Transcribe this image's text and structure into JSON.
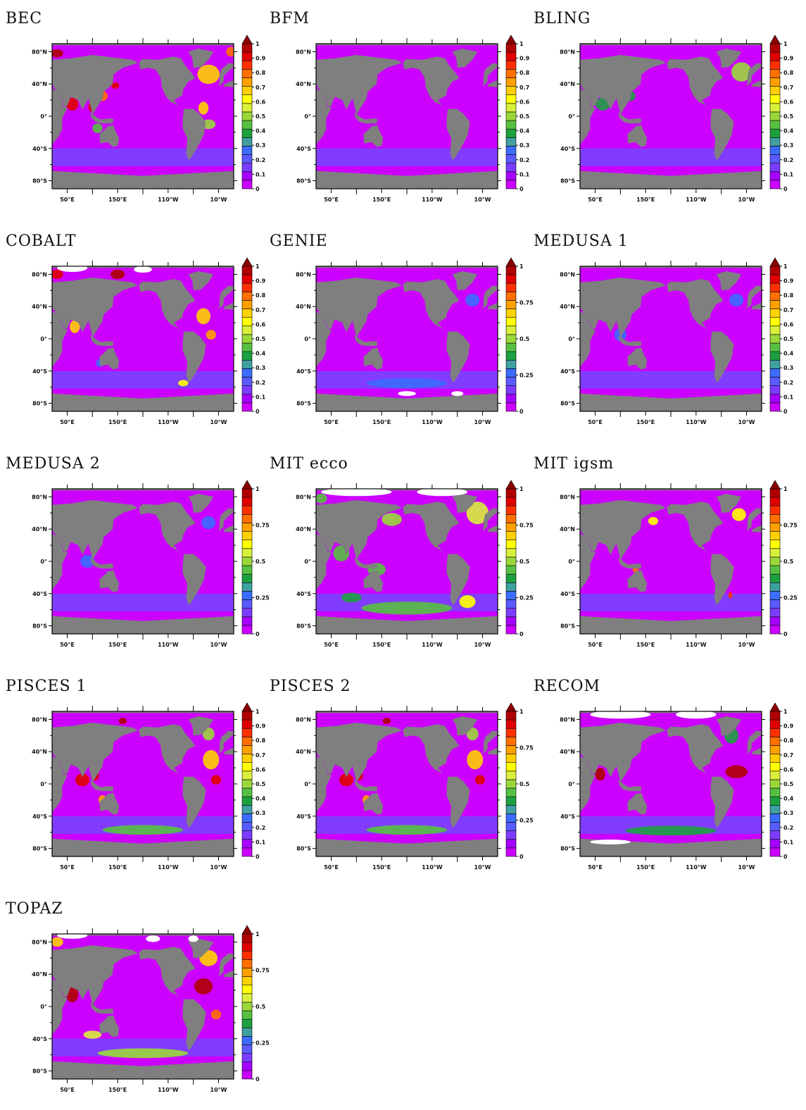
{
  "figure": {
    "panels": [
      {
        "title": "BEC",
        "cb": "tenths",
        "tint": "bec"
      },
      {
        "title": "BFM",
        "cb": "tenths",
        "tint": "bfm"
      },
      {
        "title": "BLING",
        "cb": "tenths",
        "tint": "bling"
      },
      {
        "title": "COBALT",
        "cb": "tenths",
        "tint": "cobalt"
      },
      {
        "title": "GENIE",
        "cb": "quarters",
        "tint": "genie"
      },
      {
        "title": "MEDUSA 1",
        "cb": "tenths",
        "tint": "medusa1"
      },
      {
        "title": "MEDUSA 2",
        "cb": "quarters",
        "tint": "medusa2"
      },
      {
        "title": "MIT ecco",
        "cb": "quarters",
        "tint": "mitecco"
      },
      {
        "title": "MIT igsm",
        "cb": "quarters",
        "tint": "mitigsm"
      },
      {
        "title": "PISCES 1",
        "cb": "tenths",
        "tint": "pisces1"
      },
      {
        "title": "PISCES 2",
        "cb": "quarters",
        "tint": "pisces2"
      },
      {
        "title": "RECOM",
        "cb": "tenths",
        "tint": "recom"
      },
      {
        "title": "TOPAZ",
        "cb": "quarters",
        "tint": "topaz"
      }
    ],
    "colors": {
      "land": "#7f7f7f",
      "ocean_low": "#cc00ff",
      "ocean_mid": "#6f4bff",
      "frame": "#000000",
      "palette": [
        "#cc00ff",
        "#a600ff",
        "#7c3cff",
        "#5a5aff",
        "#3b6cff",
        "#3fa0a0",
        "#1ea040",
        "#57c040",
        "#9ad83a",
        "#d8f03a",
        "#ffff00",
        "#ffd000",
        "#ffa000",
        "#ff7000",
        "#ff3000",
        "#e00000",
        "#b00000"
      ],
      "over": "#8b0000"
    }
  },
  "chart_data": {
    "type": "heatmap",
    "xticks": [
      "50°E",
      "150°E",
      "110°W",
      "10°W"
    ],
    "yticks": [
      "80°N",
      "40°N",
      "0°",
      "40°S",
      "80°S"
    ],
    "colorbar_tenths": [
      "1",
      "0.9",
      "0.8",
      "0.7",
      "0.6",
      "0.5",
      "0.4",
      "0.3",
      "0.2",
      "0.1",
      "0"
    ],
    "colorbar_quarters": [
      "1",
      "0.75",
      "0.5",
      "0.25",
      "0"
    ],
    "vmin": 0,
    "vmax": 1,
    "extend": "max"
  }
}
